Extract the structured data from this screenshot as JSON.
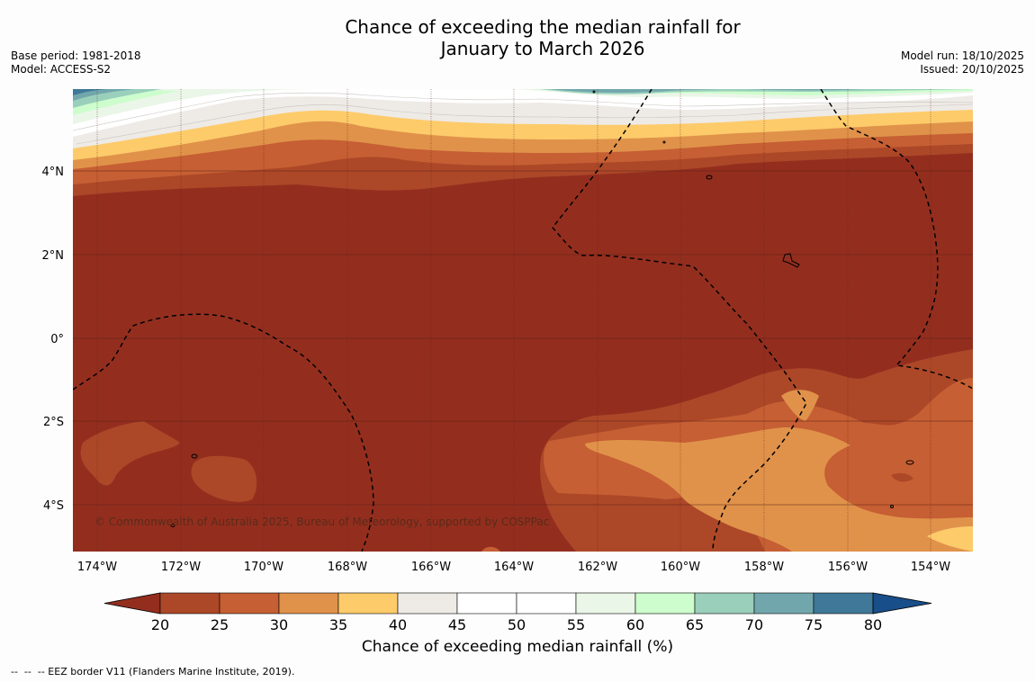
{
  "title": {
    "line1": "Chance of exceeding the median rainfall for",
    "line2": "January to March 2026"
  },
  "meta": {
    "base_period": "Base period: 1981-2018",
    "model": "Model: ACCESS-S2",
    "model_run": "Model run: 18/10/2025",
    "issued": "Issued: 20/10/2025"
  },
  "map": {
    "copyright": "© Commonwealth of Australia 2025, Bureau of Meteorology, supported by COSPPac",
    "lon_labels": [
      "174°W",
      "172°W",
      "170°W",
      "168°W",
      "166°W",
      "164°W",
      "162°W",
      "160°W",
      "158°W",
      "156°W",
      "154°W"
    ],
    "lat_labels": [
      "4°N",
      "2°N",
      "0°",
      "2°S",
      "4°S"
    ]
  },
  "colorbar": {
    "label": "Chance of exceeding median rainfall (%)",
    "ticks": [
      "20",
      "25",
      "30",
      "35",
      "40",
      "45",
      "50",
      "55",
      "60",
      "65",
      "70",
      "75",
      "80"
    ],
    "colors": {
      "below20": "#932e1f",
      "c20_25": "#ac4828",
      "c25_30": "#c65f33",
      "c30_35": "#e0924a",
      "c35_40": "#fdcb6a",
      "c40_45": "#eeeae6",
      "c45_50": "#ffffff",
      "c50_55": "#ffffff",
      "c55_60": "#eaf6e8",
      "c60_65": "#cdfdcd",
      "c65_70": "#9acfbb",
      "c70_75": "#71a7ac",
      "c75_80": "#3f7898",
      "above80": "#184e89"
    }
  },
  "footnote": "--  --  -- EEZ border V11 (Flanders Marine Institute, 2019)."
}
